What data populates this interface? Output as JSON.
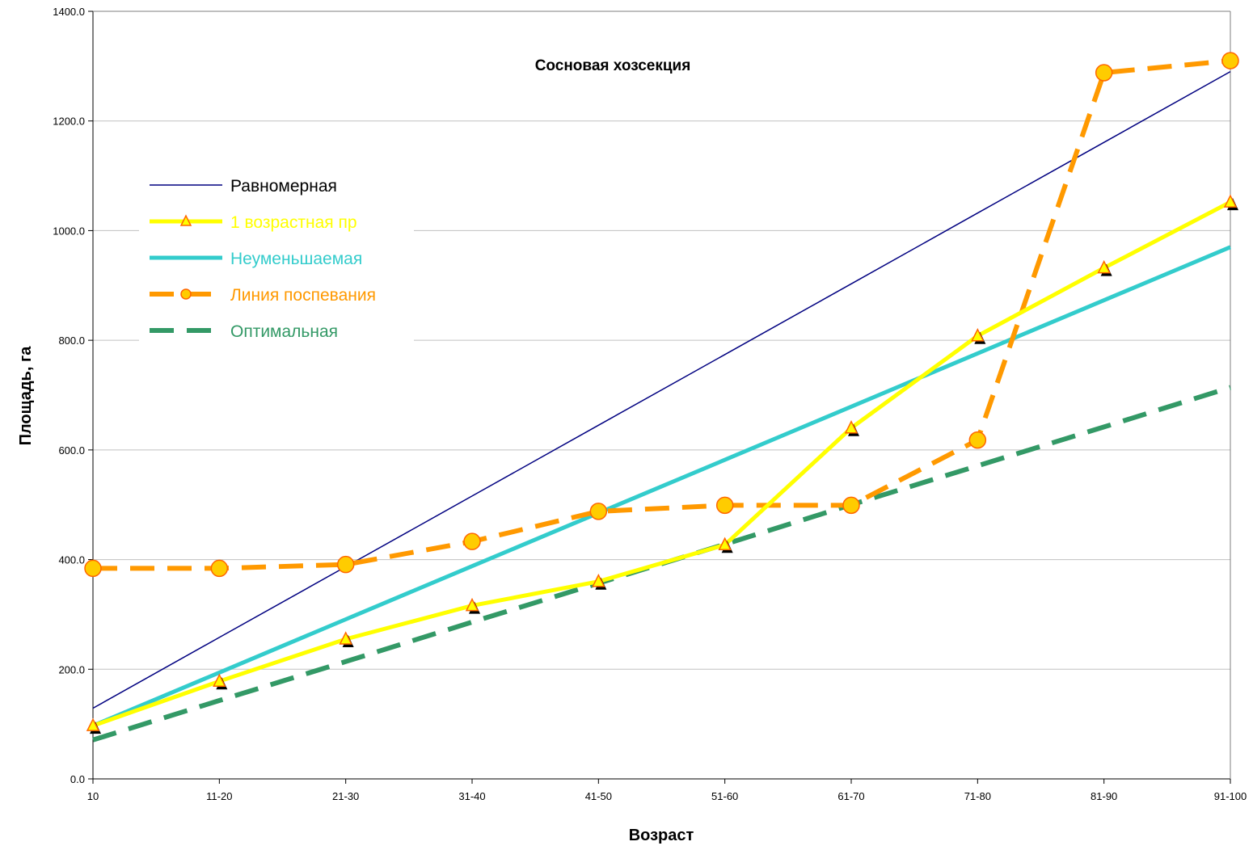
{
  "chart_data": {
    "type": "line",
    "title": "Сосновая хозсекция",
    "xlabel": "Возраст",
    "ylabel": "Площадь, га",
    "categories": [
      "10",
      "11-20",
      "21-30",
      "31-40",
      "41-50",
      "51-60",
      "61-70",
      "71-80",
      "81-90",
      "91-100"
    ],
    "ylim": [
      0,
      1400
    ],
    "yticks": [
      0,
      200,
      400,
      600,
      800,
      1000,
      1200,
      1400
    ],
    "ytick_labels": [
      "0.0",
      "200.0",
      "400.0",
      "600.0",
      "800.0",
      "1000.0",
      "1200.0",
      "1400.0"
    ],
    "grid": true,
    "legend_position": "upper-left",
    "series": [
      {
        "name": "Равномерная",
        "color": "#000080",
        "style": "thin-solid",
        "marker": "none",
        "values": [
          129,
          258,
          387,
          516,
          645,
          774,
          903,
          1032,
          1161,
          1290
        ]
      },
      {
        "name": "1 возрастная пр",
        "color": "#ffff00",
        "style": "thick-solid",
        "marker": "triangle",
        "values": [
          97,
          178,
          255,
          316,
          360,
          427,
          640,
          808,
          932,
          1052
        ]
      },
      {
        "name": "Неуменьшаемая",
        "color": "#33cccc",
        "style": "thick-solid",
        "marker": "none",
        "values": [
          97,
          194,
          291,
          388,
          485,
          582,
          679,
          776,
          873,
          970
        ]
      },
      {
        "name": "Линия поспевания",
        "color": "#ff9900",
        "style": "thick-dashed",
        "marker": "circle",
        "values": [
          384,
          384,
          391,
          433,
          488,
          499,
          499,
          618,
          1288,
          1310
        ]
      },
      {
        "name": "Оптимальная",
        "color": "#339966",
        "style": "thick-dashed",
        "marker": "none",
        "values": [
          71,
          143,
          214,
          286,
          357,
          428,
          500,
          571,
          642,
          714
        ]
      }
    ]
  }
}
